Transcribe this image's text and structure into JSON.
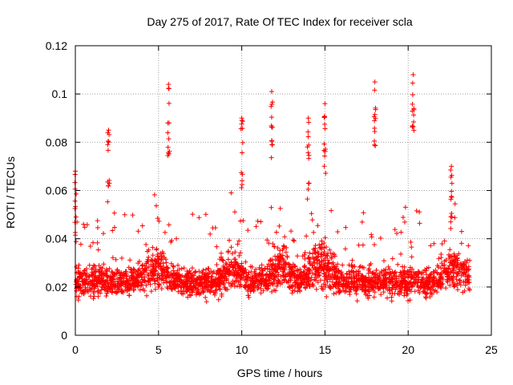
{
  "chart_data": {
    "type": "scatter",
    "title": "Day 275 of 2017, Rate Of TEC Index for receiver scla",
    "xlabel": "GPS time / hours",
    "ylabel": "ROTI / TECUs",
    "xlim": [
      0,
      25
    ],
    "ylim": [
      0,
      0.12
    ],
    "x_ticks": [
      0,
      5,
      10,
      15,
      20,
      25
    ],
    "x_tick_labels": [
      "0",
      "5",
      "10",
      "15",
      "20",
      "25"
    ],
    "y_ticks": [
      0,
      0.02,
      0.04,
      0.06,
      0.08,
      0.1,
      0.12
    ],
    "y_tick_labels": [
      "0",
      "0.02",
      "0.04",
      "0.06",
      "0.08",
      "0.1",
      "0.12"
    ],
    "grid": true,
    "marker": "+",
    "color": "#ff0000",
    "x_range_of_data": [
      0,
      23.7
    ],
    "series": [
      {
        "name": "ROTI",
        "description_points": "dense cloud, baseline ~0.01-0.03 TECU/s",
        "peaks": [
          {
            "x": 0.0,
            "y": 0.068
          },
          {
            "x": 2.0,
            "y": 0.085
          },
          {
            "x": 5.6,
            "y": 0.104
          },
          {
            "x": 10.0,
            "y": 0.09
          },
          {
            "x": 11.8,
            "y": 0.101
          },
          {
            "x": 14.0,
            "y": 0.09
          },
          {
            "x": 15.0,
            "y": 0.096
          },
          {
            "x": 18.0,
            "y": 0.105
          },
          {
            "x": 20.3,
            "y": 0.108
          },
          {
            "x": 22.6,
            "y": 0.07
          }
        ]
      }
    ]
  }
}
